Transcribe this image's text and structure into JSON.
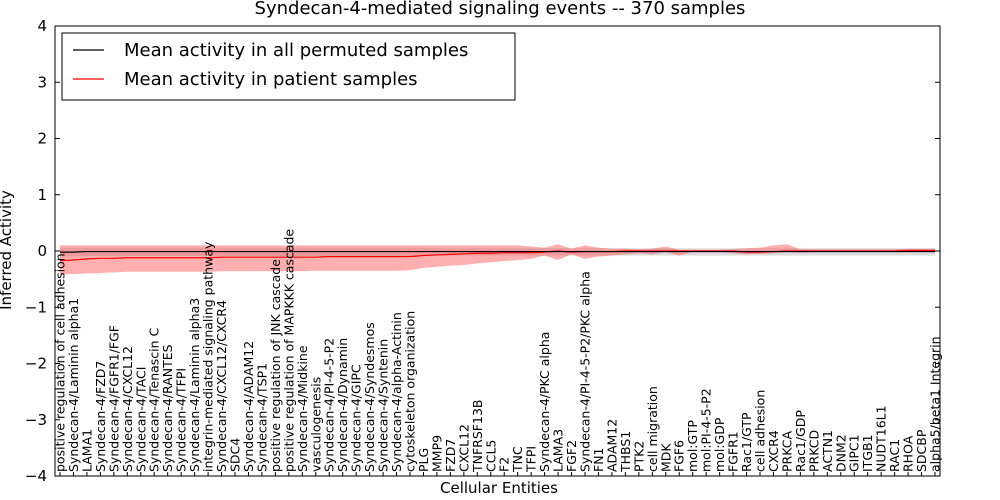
{
  "chart_data": {
    "type": "line",
    "title": "Syndecan-4-mediated signaling events -- 370 samples",
    "xlabel": "Cellular Entities",
    "ylabel": "Inferred Activity",
    "ylim": [
      -4,
      4
    ],
    "yticks": [
      -4,
      -3,
      -2,
      -1,
      0,
      1,
      2,
      3,
      4
    ],
    "ytick_labels": [
      "−4",
      "−3",
      "−2",
      "−1",
      "0",
      "1",
      "2",
      "3",
      "4"
    ],
    "legend_position": "top-left",
    "categories": [
      "positive regulation of cell adhesion",
      "Syndecan-4/Laminin alpha1",
      "LAMA1",
      "Syndecan-4/FZD7",
      "Syndecan-4/FGFR1/FGF",
      "Syndecan-4/CXCL12",
      "Syndecan-4/TACI",
      "Syndecan-4/Tenascin C",
      "Syndecan-4/RANTES",
      "Syndecan-4/TFPI",
      "Syndecan-4/Laminin alpha3",
      "integrin-mediated signaling pathway",
      "Syndecan-4/CXCL12/CXCR4",
      "SDC4",
      "Syndecan-4/ADAM12",
      "Syndecan-4/TSP1",
      "positive regulation of JNK cascade",
      "positive regulation of MAPKKK cascade",
      "Syndecan-4/Midkine",
      "vasculogenesis",
      "Syndecan-4/PI-4-5-P2",
      "Syndecan-4/Dynamin",
      "Syndecan-4/GIPC",
      "Syndecan-4/Syndesmos",
      "Syndecan-4/Syntenin",
      "Syndecan-4/alpha-Actinin",
      "cytoskeleton organization",
      "PLG",
      "MMP9",
      "FZD7",
      "CXCL12",
      "TNFRSF13B",
      "CCL5",
      "F2",
      "TNC",
      "TFPI",
      "Syndecan-4/PKC alpha",
      "LAMA3",
      "FGF2",
      "Syndecan-4/PI-4-5-P2/PKC alpha",
      "FN1",
      "ADAM12",
      "THBS1",
      "PTK2",
      "cell migration",
      "MDK",
      "FGF6",
      "mol:GTP",
      "mol:PI-4-5-P2",
      "mol:GDP",
      "FGFR1",
      "Rac1/GTP",
      "cell adhesion",
      "CXCR4",
      "PRKCA",
      "Rac1/GDP",
      "PRKCD",
      "ACTN1",
      "DNM2",
      "GIPC1",
      "ITGB1",
      "NUDT16L1",
      "RAC1",
      "RHOA",
      "SDCBP",
      "alpha5/beta1 Integrin"
    ],
    "series": [
      {
        "name": "Mean activity in all permuted samples",
        "color": "#000000",
        "values": [
          -0.02,
          -0.02,
          -0.01,
          -0.01,
          -0.01,
          -0.01,
          -0.01,
          -0.01,
          -0.01,
          -0.01,
          -0.01,
          -0.01,
          -0.01,
          -0.01,
          -0.01,
          -0.01,
          -0.01,
          -0.01,
          -0.01,
          -0.01,
          -0.01,
          -0.01,
          -0.01,
          -0.01,
          -0.01,
          -0.01,
          -0.01,
          -0.01,
          -0.01,
          -0.01,
          -0.01,
          -0.01,
          -0.01,
          -0.01,
          -0.01,
          -0.01,
          -0.01,
          -0.01,
          -0.01,
          -0.01,
          -0.01,
          -0.01,
          -0.01,
          -0.01,
          -0.01,
          -0.01,
          -0.01,
          -0.01,
          -0.01,
          -0.01,
          -0.01,
          -0.01,
          -0.01,
          -0.01,
          -0.01,
          -0.01,
          -0.01,
          -0.01,
          -0.01,
          -0.01,
          -0.01,
          -0.01,
          -0.01,
          -0.01,
          -0.01,
          -0.01
        ],
        "lower": [
          -0.1,
          -0.1,
          -0.09,
          -0.09,
          -0.09,
          -0.09,
          -0.09,
          -0.09,
          -0.09,
          -0.09,
          -0.09,
          -0.09,
          -0.09,
          -0.09,
          -0.09,
          -0.09,
          -0.09,
          -0.09,
          -0.09,
          -0.09,
          -0.09,
          -0.09,
          -0.09,
          -0.09,
          -0.09,
          -0.09,
          -0.09,
          -0.09,
          -0.08,
          -0.08,
          -0.08,
          -0.08,
          -0.08,
          -0.08,
          -0.08,
          -0.08,
          -0.08,
          -0.08,
          -0.08,
          -0.08,
          -0.08,
          -0.08,
          -0.08,
          -0.08,
          -0.08,
          -0.08,
          -0.08,
          -0.08,
          -0.08,
          -0.08,
          -0.08,
          -0.08,
          -0.08,
          -0.08,
          -0.08,
          -0.08,
          -0.08,
          -0.08,
          -0.08,
          -0.08,
          -0.08,
          -0.08,
          -0.08,
          -0.08,
          -0.08,
          -0.08
        ],
        "upper": [
          0.06,
          0.06,
          0.06,
          0.06,
          0.06,
          0.06,
          0.06,
          0.06,
          0.06,
          0.06,
          0.06,
          0.06,
          0.06,
          0.06,
          0.06,
          0.06,
          0.06,
          0.06,
          0.06,
          0.06,
          0.06,
          0.06,
          0.06,
          0.06,
          0.06,
          0.06,
          0.06,
          0.06,
          0.05,
          0.05,
          0.05,
          0.05,
          0.05,
          0.05,
          0.05,
          0.05,
          0.05,
          0.05,
          0.05,
          0.05,
          0.05,
          0.05,
          0.05,
          0.05,
          0.05,
          0.05,
          0.05,
          0.05,
          0.05,
          0.05,
          0.05,
          0.05,
          0.05,
          0.05,
          0.05,
          0.05,
          0.05,
          0.05,
          0.05,
          0.05,
          0.05,
          0.05,
          0.05,
          0.05,
          0.05,
          0.05
        ]
      },
      {
        "name": "Mean activity in patient samples",
        "color": "#ff0000",
        "values": [
          -0.17,
          -0.16,
          -0.14,
          -0.13,
          -0.13,
          -0.12,
          -0.12,
          -0.12,
          -0.12,
          -0.12,
          -0.12,
          -0.12,
          -0.11,
          -0.11,
          -0.11,
          -0.11,
          -0.11,
          -0.11,
          -0.11,
          -0.11,
          -0.1,
          -0.1,
          -0.1,
          -0.1,
          -0.1,
          -0.1,
          -0.1,
          -0.08,
          -0.07,
          -0.06,
          -0.05,
          -0.04,
          -0.04,
          -0.03,
          -0.03,
          -0.03,
          -0.02,
          0.0,
          -0.02,
          -0.01,
          -0.01,
          -0.01,
          0.0,
          0.0,
          0.0,
          0.0,
          0.0,
          0.0,
          0.0,
          0.0,
          0.0,
          -0.02,
          -0.02,
          -0.01,
          0.0,
          0.0,
          0.0,
          0.0,
          0.0,
          0.0,
          0.0,
          0.0,
          0.0,
          0.01,
          0.01,
          0.01
        ],
        "lower": [
          -0.42,
          -0.41,
          -0.4,
          -0.39,
          -0.38,
          -0.37,
          -0.37,
          -0.37,
          -0.37,
          -0.37,
          -0.37,
          -0.37,
          -0.36,
          -0.36,
          -0.36,
          -0.36,
          -0.36,
          -0.36,
          -0.36,
          -0.35,
          -0.35,
          -0.35,
          -0.35,
          -0.35,
          -0.35,
          -0.35,
          -0.34,
          -0.3,
          -0.28,
          -0.26,
          -0.25,
          -0.22,
          -0.2,
          -0.18,
          -0.16,
          -0.14,
          -0.08,
          -0.16,
          -0.06,
          -0.14,
          -0.1,
          -0.08,
          -0.06,
          -0.04,
          -0.06,
          -0.02,
          -0.08,
          -0.02,
          -0.02,
          -0.02,
          -0.04,
          -0.06,
          -0.05,
          -0.04,
          -0.02,
          -0.03,
          -0.02,
          -0.02,
          -0.02,
          -0.02,
          -0.02,
          -0.02,
          -0.02,
          -0.02,
          -0.02,
          -0.02
        ],
        "upper": [
          0.1,
          0.1,
          0.1,
          0.1,
          0.1,
          0.1,
          0.1,
          0.1,
          0.1,
          0.1,
          0.1,
          0.1,
          0.1,
          0.1,
          0.1,
          0.1,
          0.1,
          0.1,
          0.1,
          0.1,
          0.1,
          0.1,
          0.1,
          0.1,
          0.1,
          0.1,
          0.1,
          0.1,
          0.1,
          0.1,
          0.1,
          0.1,
          0.1,
          0.1,
          0.1,
          0.08,
          0.06,
          0.12,
          0.04,
          0.1,
          0.06,
          0.04,
          0.04,
          0.03,
          0.04,
          0.08,
          0.02,
          0.02,
          0.02,
          0.02,
          0.03,
          0.05,
          0.06,
          0.1,
          0.12,
          0.03,
          0.03,
          0.03,
          0.03,
          0.03,
          0.03,
          0.03,
          0.03,
          0.04,
          0.04,
          0.04
        ]
      }
    ]
  }
}
